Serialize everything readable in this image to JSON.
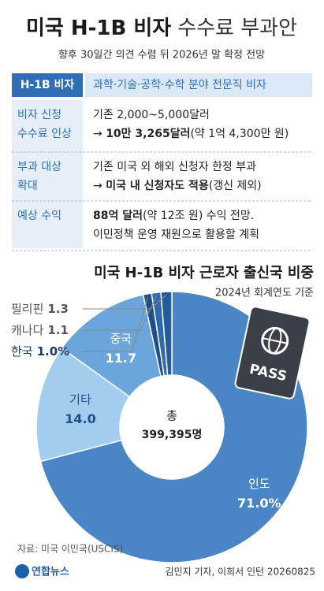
{
  "header": {
    "title_bold": "미국 H-1B 비자",
    "title_light": "수수료 부과안",
    "subtitle": "향후 30일간 의견 수렴 뒤 2026년 말 확정 전망"
  },
  "table": {
    "head": {
      "label": "H-1B 비자",
      "text": "과학·기술·공학·수학 분야 전문직 비자"
    },
    "rows": [
      {
        "label": [
          "비자 신청",
          "수수료 인상"
        ],
        "lines": [
          [
            {
              "text": "기존 2,000~5,000달러",
              "bold": false
            }
          ],
          [
            {
              "text": "→ ",
              "bold": false
            },
            {
              "text": "10만 3,265달러",
              "bold": true
            },
            {
              "text": "(약 1억 4,300만 원)",
              "bold": false
            }
          ]
        ]
      },
      {
        "label": [
          "부과 대상",
          "확대"
        ],
        "lines": [
          [
            {
              "text": "기존 미국 외 해외 신청자 한정 부과",
              "bold": false
            }
          ],
          [
            {
              "text": "→ ",
              "bold": false
            },
            {
              "text": "미국 내 신청자도 적용",
              "bold": true
            },
            {
              "text": "(갱신 제외)",
              "bold": false
            }
          ]
        ]
      },
      {
        "label": [
          "예상 수익"
        ],
        "lines": [
          [
            {
              "text": "88억 달러",
              "bold": true
            },
            {
              "text": "(약 12조 원) 수익 전망.",
              "bold": false
            }
          ],
          [
            {
              "text": "이민정책 운영 재원으로 활용할 계획",
              "bold": false
            }
          ]
        ]
      }
    ]
  },
  "chart_data": {
    "type": "pie",
    "title": "미국 H-1B 비자 근로자 출신국 비중",
    "subtitle": "2024년 회계연도 기준",
    "center_title": "총",
    "center_value": "399,395명",
    "categories": [
      "인도",
      "기타",
      "중국",
      "한국",
      "캐나다",
      "필리핀"
    ],
    "values": [
      71.0,
      14.0,
      11.7,
      1.0,
      1.1,
      1.3
    ],
    "value_labels": [
      "71.0%",
      "14.0",
      "11.7",
      "1.0%",
      "1.1",
      "1.3"
    ],
    "colors": [
      "#4a86c5",
      "#a3cdee",
      "#6aa5dc",
      "#1d4f8f",
      "#2f6aaa",
      "#245b9a"
    ]
  },
  "footer": {
    "source": "자료: 미국 이민국(USCIS)",
    "logo": "연합뉴스",
    "credit": "김민지 기자, 이희서 인턴 20260825"
  }
}
